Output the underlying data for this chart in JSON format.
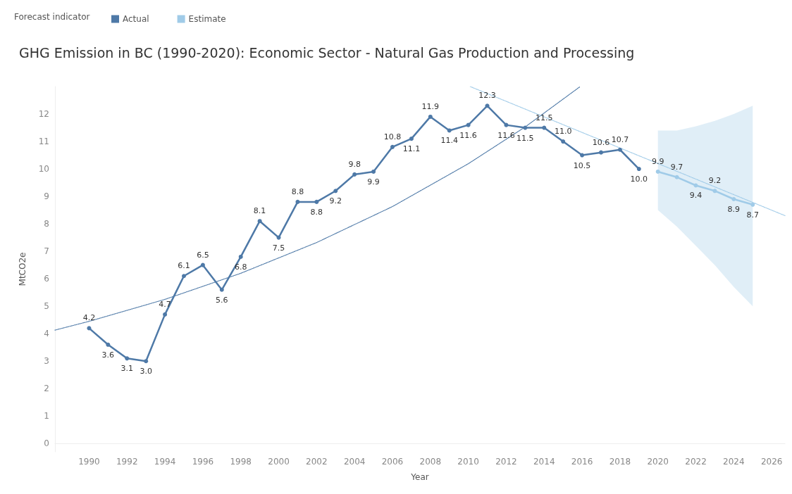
{
  "chart_data": {
    "type": "line",
    "title": "GHG Emission in BC (1990-2020): Economic Sector - Natural Gas Production and Processing",
    "xlabel": "Year",
    "ylabel": "MtCO2e",
    "legend_title": "Forecast indicator",
    "legend": "top left",
    "grid": false,
    "marker": "circle",
    "line_style": "solid",
    "xlim": [
      1988.2,
      2026.7
    ],
    "xticks": [
      1990,
      1992,
      1994,
      1996,
      1998,
      2000,
      2002,
      2004,
      2006,
      2008,
      2010,
      2012,
      2014,
      2016,
      2018,
      2020,
      2022,
      2024,
      2026
    ],
    "ylim": [
      -0.3,
      13
    ],
    "yticks": [
      0,
      1,
      2,
      3,
      4,
      5,
      6,
      7,
      8,
      9,
      10,
      11,
      12
    ],
    "series": [
      {
        "name": "Actual",
        "color": "#4e79a7",
        "x": [
          1990,
          1991,
          1992,
          1993,
          1994,
          1995,
          1996,
          1997,
          1998,
          1999,
          2000,
          2001,
          2002,
          2003,
          2004,
          2005,
          2006,
          2007,
          2008,
          2009,
          2010,
          2011,
          2012,
          2013,
          2014,
          2015,
          2016,
          2017,
          2018,
          2019
        ],
        "values": [
          4.2,
          3.6,
          3.1,
          3.0,
          4.7,
          6.1,
          6.5,
          5.6,
          6.8,
          8.1,
          7.5,
          8.8,
          8.8,
          9.2,
          9.8,
          9.9,
          10.8,
          11.1,
          11.9,
          11.4,
          11.6,
          12.3,
          11.6,
          11.5,
          11.5,
          11.0,
          10.5,
          10.6,
          10.7,
          10.0
        ],
        "value_labels": [
          "4.2",
          "3.6",
          "3.1",
          "3.0",
          "4.7",
          "6.1",
          "6.5",
          "5.6",
          "6.8",
          "8.1",
          "7.5",
          "8.8",
          "8.8",
          "9.2",
          "9.8",
          "9.9",
          "10.8",
          "11.1",
          "11.9",
          "11.4",
          "11.6",
          "12.3",
          "11.6",
          "11.5",
          "11.5",
          "11.0",
          "10.5",
          "10.6",
          "10.7",
          "10.0"
        ]
      },
      {
        "name": "Estimate",
        "color": "#a0cbe8",
        "x": [
          2020,
          2021,
          2022,
          2023,
          2024,
          2025
        ],
        "values": [
          9.9,
          9.7,
          9.4,
          9.2,
          8.9,
          8.7
        ],
        "value_labels": [
          "9.9",
          "9.7",
          "9.4",
          "9.2",
          "8.9",
          "8.7"
        ],
        "lower": [
          8.5,
          7.9,
          7.2,
          6.5,
          5.7,
          5.0
        ],
        "upper": [
          11.4,
          11.4,
          11.55,
          11.75,
          12.0,
          12.3
        ]
      },
      {
        "type": "line",
        "color": "#4e79a7",
        "line_style": "dotted",
        "marker": "none",
        "x": [
          1988.2,
          1990,
          1994,
          1998,
          2002,
          2006,
          2010,
          2013,
          2015.9
        ],
        "values": [
          4.13,
          4.45,
          5.25,
          6.2,
          7.32,
          8.63,
          10.19,
          11.53,
          13.0
        ]
      },
      {
        "type": "line",
        "color": "#a0cbe8",
        "line_style": "dotted",
        "marker": "none",
        "x": [
          2010.1,
          2026.7
        ],
        "values": [
          13.0,
          8.3
        ]
      }
    ]
  }
}
